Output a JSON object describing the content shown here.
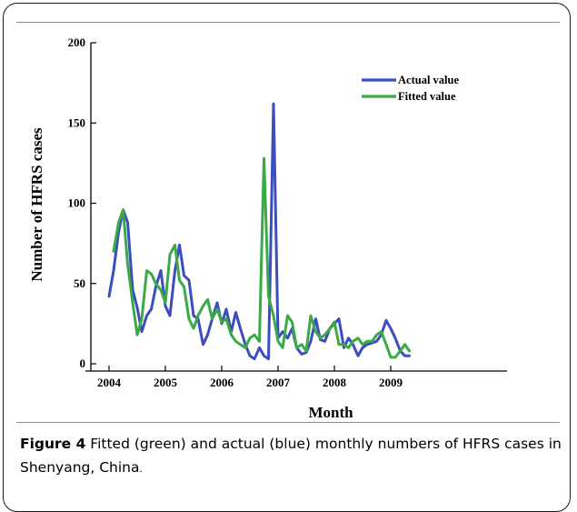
{
  "chart_data": {
    "type": "line",
    "xlabel": "Month",
    "ylabel": "Number of HFRS cases",
    "xlim": [
      2004,
      2009.5
    ],
    "ylim": [
      0,
      200
    ],
    "x_ticks": [
      "2004",
      "2005",
      "2006",
      "2007",
      "2008",
      "2009"
    ],
    "y_ticks": [
      "0",
      "50",
      "100",
      "150",
      "200"
    ],
    "legend_position": "top-right",
    "series": [
      {
        "name": "Actual value",
        "color": "#3b4dbf",
        "x": [
          2004.0,
          2004.08,
          2004.17,
          2004.25,
          2004.33,
          2004.42,
          2004.5,
          2004.58,
          2004.67,
          2004.75,
          2004.83,
          2004.92,
          2005.0,
          2005.08,
          2005.17,
          2005.25,
          2005.33,
          2005.42,
          2005.5,
          2005.58,
          2005.67,
          2005.75,
          2005.83,
          2005.92,
          2006.0,
          2006.08,
          2006.17,
          2006.25,
          2006.33,
          2006.42,
          2006.5,
          2006.58,
          2006.67,
          2006.75,
          2006.83,
          2006.92,
          2007.0,
          2007.08,
          2007.17,
          2007.25,
          2007.33,
          2007.42,
          2007.5,
          2007.58,
          2007.67,
          2007.75,
          2007.83,
          2007.92,
          2008.0,
          2008.08,
          2008.17,
          2008.25,
          2008.33,
          2008.42,
          2008.5,
          2008.58,
          2008.67,
          2008.75,
          2008.83,
          2008.92,
          2009.0,
          2009.08,
          2009.17,
          2009.25,
          2009.33
        ],
        "y": [
          42,
          58,
          82,
          96,
          88,
          46,
          35,
          20,
          30,
          34,
          48,
          58,
          36,
          30,
          58,
          74,
          55,
          52,
          30,
          28,
          12,
          18,
          28,
          38,
          25,
          34,
          20,
          32,
          22,
          12,
          5,
          3,
          10,
          5,
          3,
          162,
          16,
          20,
          16,
          22,
          10,
          6,
          7,
          14,
          28,
          15,
          14,
          22,
          25,
          28,
          10,
          16,
          12,
          5,
          10,
          12,
          13,
          14,
          18,
          27,
          22,
          16,
          8,
          5,
          5
        ]
      },
      {
        "name": "Fitted value",
        "color": "#3aaa47",
        "x": [
          2004.08,
          2004.17,
          2004.25,
          2004.33,
          2004.42,
          2004.5,
          2004.58,
          2004.67,
          2004.75,
          2004.83,
          2004.92,
          2005.0,
          2005.08,
          2005.17,
          2005.25,
          2005.33,
          2005.42,
          2005.5,
          2005.58,
          2005.67,
          2005.75,
          2005.83,
          2005.92,
          2006.0,
          2006.08,
          2006.17,
          2006.25,
          2006.33,
          2006.42,
          2006.5,
          2006.58,
          2006.67,
          2006.75,
          2006.83,
          2006.92,
          2007.0,
          2007.08,
          2007.17,
          2007.25,
          2007.33,
          2007.42,
          2007.5,
          2007.58,
          2007.67,
          2007.75,
          2007.83,
          2007.92,
          2008.0,
          2008.08,
          2008.17,
          2008.25,
          2008.33,
          2008.42,
          2008.5,
          2008.58,
          2008.67,
          2008.75,
          2008.83,
          2008.92,
          2009.0,
          2009.08,
          2009.17,
          2009.25,
          2009.33
        ],
        "y": [
          70,
          88,
          96,
          62,
          38,
          18,
          28,
          58,
          56,
          50,
          46,
          38,
          68,
          74,
          52,
          48,
          28,
          22,
          30,
          36,
          40,
          28,
          34,
          26,
          28,
          18,
          14,
          12,
          10,
          16,
          18,
          14,
          128,
          42,
          30,
          14,
          10,
          30,
          26,
          10,
          12,
          8,
          30,
          20,
          16,
          18,
          22,
          26,
          12,
          12,
          10,
          14,
          16,
          12,
          14,
          14,
          18,
          20,
          12,
          4,
          4,
          8,
          12,
          8
        ]
      }
    ]
  },
  "caption": {
    "lead": "Figure 4",
    "text": " Fitted (green) and actual (blue) monthly numbers of HFRS cases in Shenyang, China",
    "period": "."
  }
}
